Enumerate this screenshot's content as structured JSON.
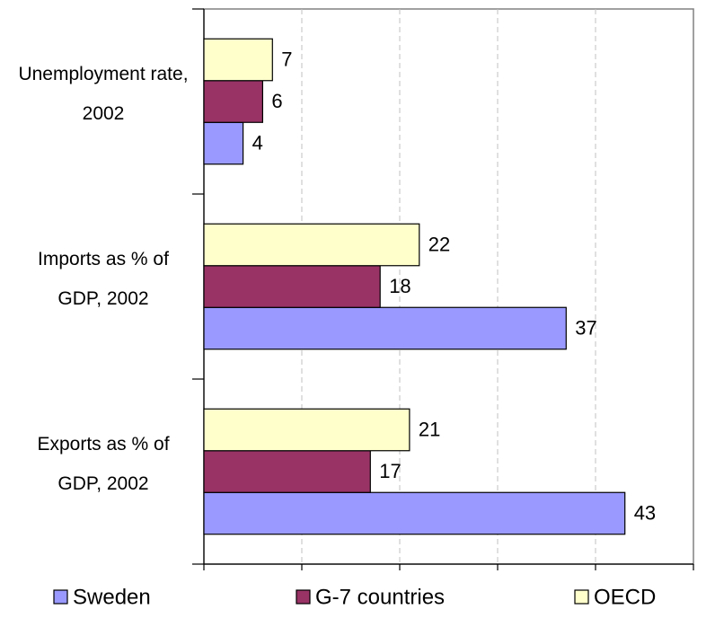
{
  "chart_data": {
    "type": "bar",
    "orientation": "horizontal",
    "categories": [
      "Unemployment rate, 2002",
      "Imports as % of GDP, 2002",
      "Exports as % of GDP, 2002"
    ],
    "series": [
      {
        "name": "Sweden",
        "color": "#9999ff",
        "values": [
          4,
          37,
          43
        ]
      },
      {
        "name": "G-7 countries",
        "color": "#993366",
        "values": [
          6,
          18,
          17
        ]
      },
      {
        "name": "OECD",
        "color": "#ffffcc",
        "values": [
          7,
          22,
          21
        ]
      }
    ],
    "xlim": [
      0,
      50
    ],
    "xticks": [
      0,
      10,
      20,
      30,
      40,
      50
    ],
    "grid": true,
    "legend": "bottom"
  }
}
